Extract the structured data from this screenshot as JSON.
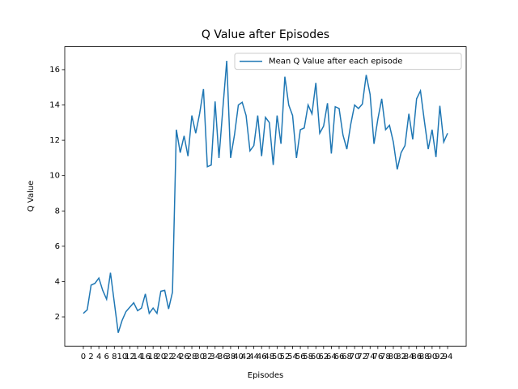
{
  "chart_data": {
    "type": "line",
    "title": "Q Value after Episodes",
    "x_label": "Episodes",
    "y_label": "Q Value",
    "x": [
      0,
      1,
      2,
      3,
      4,
      5,
      6,
      7,
      8,
      9,
      10,
      11,
      12,
      13,
      14,
      15,
      16,
      17,
      18,
      19,
      20,
      21,
      22,
      23,
      24,
      25,
      26,
      27,
      28,
      29,
      30,
      31,
      32,
      33,
      34,
      35,
      36,
      37,
      38,
      39,
      40,
      41,
      42,
      43,
      44,
      45,
      46,
      47,
      48,
      49,
      50,
      51,
      52,
      53,
      54,
      55,
      56,
      57,
      58,
      59,
      60,
      61,
      62,
      63,
      64,
      65,
      66,
      67,
      68,
      69,
      70,
      71,
      72,
      73,
      74,
      75,
      76,
      77,
      78,
      79,
      80,
      81,
      82,
      83,
      84,
      85,
      86,
      87,
      88,
      89,
      90,
      91,
      92,
      93,
      94
    ],
    "series": [
      {
        "name": "Mean Q Value after each episode",
        "color": "#1f77b4",
        "values": [
          2.2,
          2.4,
          3.8,
          3.9,
          4.2,
          3.5,
          3.0,
          4.5,
          2.8,
          1.1,
          1.8,
          2.3,
          2.55,
          2.8,
          2.35,
          2.5,
          3.3,
          2.2,
          2.5,
          2.2,
          3.45,
          3.5,
          2.45,
          3.4,
          12.6,
          11.3,
          12.25,
          11.1,
          13.4,
          12.4,
          13.5,
          14.9,
          10.5,
          10.6,
          14.2,
          11.0,
          13.8,
          16.5,
          11.0,
          12.3,
          14.0,
          14.15,
          13.4,
          11.4,
          11.7,
          13.4,
          11.1,
          13.3,
          13.0,
          10.6,
          13.4,
          11.8,
          15.6,
          14.0,
          13.4,
          11.0,
          12.6,
          12.7,
          14.0,
          13.5,
          15.25,
          12.4,
          12.8,
          14.1,
          11.25,
          13.9,
          13.8,
          12.3,
          11.5,
          12.9,
          14.0,
          13.8,
          14.05,
          15.7,
          14.6,
          11.8,
          13.2,
          14.35,
          12.6,
          12.85,
          11.9,
          10.35,
          11.3,
          11.7,
          13.5,
          12.05,
          14.35,
          14.8,
          13.1,
          11.5,
          12.6,
          11.05,
          13.95,
          11.9,
          12.4
        ]
      }
    ],
    "xlim": [
      -4.8,
      98.8
    ],
    "ylim": [
      0.34,
      17.3
    ],
    "xticks": [
      0,
      2,
      4,
      6,
      8,
      10,
      12,
      14,
      16,
      18,
      20,
      22,
      24,
      26,
      28,
      30,
      32,
      34,
      36,
      38,
      40,
      42,
      44,
      46,
      48,
      50,
      52,
      54,
      56,
      58,
      60,
      62,
      64,
      66,
      68,
      70,
      72,
      74,
      76,
      78,
      80,
      82,
      84,
      86,
      88,
      90,
      92,
      94
    ],
    "yticks": [
      2,
      4,
      6,
      8,
      10,
      12,
      14,
      16
    ],
    "legend": "upper right"
  }
}
